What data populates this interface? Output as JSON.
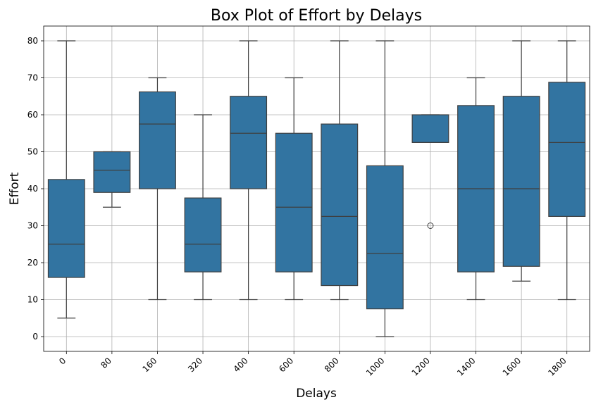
{
  "chart_data": {
    "type": "boxplot",
    "title": "Box Plot of Effort by Delays",
    "xlabel": "Delays",
    "ylabel": "Effort",
    "categories": [
      "0",
      "80",
      "160",
      "320",
      "400",
      "600",
      "800",
      "1000",
      "1200",
      "1400",
      "1600",
      "1800"
    ],
    "ylim": [
      -4,
      84
    ],
    "yticks": [
      0,
      10,
      20,
      30,
      40,
      50,
      60,
      70,
      80
    ],
    "grid": true,
    "box_color": "#3274a1",
    "line_color": "#3f3f3f",
    "boxes": [
      {
        "category": "0",
        "whisker_low": 5,
        "q1": 16,
        "median": 25,
        "q3": 42.5,
        "whisker_high": 80,
        "outliers": []
      },
      {
        "category": "80",
        "whisker_low": 35,
        "q1": 39,
        "median": 45,
        "q3": 50,
        "whisker_high": 50,
        "outliers": []
      },
      {
        "category": "160",
        "whisker_low": 10,
        "q1": 40,
        "median": 57.5,
        "q3": 66.2,
        "whisker_high": 70,
        "outliers": []
      },
      {
        "category": "320",
        "whisker_low": 10,
        "q1": 17.5,
        "median": 25,
        "q3": 37.5,
        "whisker_high": 60,
        "outliers": []
      },
      {
        "category": "400",
        "whisker_low": 10,
        "q1": 40,
        "median": 55,
        "q3": 65,
        "whisker_high": 80,
        "outliers": []
      },
      {
        "category": "600",
        "whisker_low": 10,
        "q1": 17.5,
        "median": 35,
        "q3": 55,
        "whisker_high": 70,
        "outliers": []
      },
      {
        "category": "800",
        "whisker_low": 10,
        "q1": 13.8,
        "median": 32.5,
        "q3": 57.5,
        "whisker_high": 80,
        "outliers": []
      },
      {
        "category": "1000",
        "whisker_low": 0,
        "q1": 7.5,
        "median": 22.5,
        "q3": 46.2,
        "whisker_high": 80,
        "outliers": []
      },
      {
        "category": "1200",
        "whisker_low": 52.5,
        "q1": 52.5,
        "median": 52.5,
        "q3": 60,
        "whisker_high": 60,
        "outliers": [
          30
        ]
      },
      {
        "category": "1400",
        "whisker_low": 10,
        "q1": 17.5,
        "median": 40,
        "q3": 62.5,
        "whisker_high": 70,
        "outliers": []
      },
      {
        "category": "1600",
        "whisker_low": 15,
        "q1": 19,
        "median": 40,
        "q3": 65,
        "whisker_high": 80,
        "outliers": []
      },
      {
        "category": "1800",
        "whisker_low": 10,
        "q1": 32.5,
        "median": 52.5,
        "q3": 68.8,
        "whisker_high": 80,
        "outliers": []
      }
    ]
  }
}
